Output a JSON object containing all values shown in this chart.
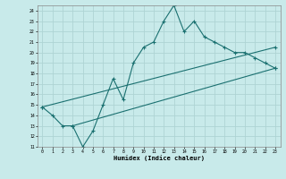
{
  "xlabel": "Humidex (Indice chaleur)",
  "bg_color": "#c8eaea",
  "grid_color": "#aed4d4",
  "line_color": "#1a7070",
  "xlim": [
    -0.5,
    23.5
  ],
  "ylim": [
    11,
    24.5
  ],
  "xticks": [
    0,
    1,
    2,
    3,
    4,
    5,
    6,
    7,
    8,
    9,
    10,
    11,
    12,
    13,
    14,
    15,
    16,
    17,
    18,
    19,
    20,
    21,
    22,
    23
  ],
  "yticks": [
    11,
    12,
    13,
    14,
    15,
    16,
    17,
    18,
    19,
    20,
    21,
    22,
    23,
    24
  ],
  "line1_x": [
    0,
    1,
    2,
    3,
    4,
    5,
    6,
    7,
    8,
    9,
    10,
    11,
    12,
    13,
    14,
    15,
    16,
    17,
    18,
    19,
    20,
    21,
    22,
    23
  ],
  "line1_y": [
    14.8,
    14.0,
    13.0,
    13.0,
    11.0,
    12.5,
    15.0,
    17.5,
    15.5,
    19.0,
    20.5,
    21.0,
    23.0,
    24.5,
    22.0,
    23.0,
    21.5,
    21.0,
    20.5,
    20.0,
    20.0,
    19.5,
    19.0,
    18.5
  ],
  "line2_x": [
    0,
    23
  ],
  "line2_y": [
    14.8,
    20.5
  ],
  "line3_x": [
    3,
    23
  ],
  "line3_y": [
    13.0,
    18.5
  ]
}
